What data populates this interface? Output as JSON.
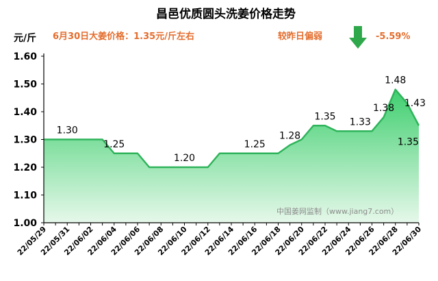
{
  "header": {
    "title": "昌邑优质圆头洗姜价格走势",
    "unit": "元/斤",
    "price_text": "6月30日大姜价格：1.35元/斤左右",
    "compare_label": "较昨日偏弱",
    "change_text": "-5.59%",
    "arrow_icon": "down-arrow-icon",
    "arrow_color": "#2ea84a"
  },
  "watermark": "中国姜网监制（www.jiang7.com）",
  "colors": {
    "line": "#2eb35a",
    "fill_top": "#3fcf6f",
    "fill_bottom": "#e6f8ea",
    "info": "#e36c2c"
  },
  "chart_data": {
    "type": "area",
    "title": "昌邑优质圆头洗姜价格走势",
    "ylabel": "元/斤",
    "xlabel": "",
    "ylim": [
      1.0,
      1.6
    ],
    "yticks": [
      "1.00",
      "1.10",
      "1.20",
      "1.30",
      "1.40",
      "1.50",
      "1.60"
    ],
    "grid": false,
    "x": [
      "22/05/29",
      "22/05/30",
      "22/05/31",
      "22/06/01",
      "22/06/02",
      "22/06/03",
      "22/06/04",
      "22/06/05",
      "22/06/06",
      "22/06/07",
      "22/06/08",
      "22/06/09",
      "22/06/10",
      "22/06/11",
      "22/06/12",
      "22/06/13",
      "22/06/14",
      "22/06/15",
      "22/06/16",
      "22/06/17",
      "22/06/18",
      "22/06/19",
      "22/06/20",
      "22/06/21",
      "22/06/22",
      "22/06/23",
      "22/06/24",
      "22/06/25",
      "22/06/26",
      "22/06/27",
      "22/06/28",
      "22/06/29",
      "22/06/30"
    ],
    "values": [
      1.3,
      1.3,
      1.3,
      1.3,
      1.3,
      1.3,
      1.25,
      1.25,
      1.25,
      1.2,
      1.2,
      1.2,
      1.2,
      1.2,
      1.2,
      1.25,
      1.25,
      1.25,
      1.25,
      1.25,
      1.25,
      1.28,
      1.3,
      1.35,
      1.35,
      1.33,
      1.33,
      1.33,
      1.33,
      1.38,
      1.48,
      1.43,
      1.35
    ],
    "xtick_labels": [
      "22/05/29",
      "22/05/31",
      "22/06/02",
      "22/06/04",
      "22/06/06",
      "22/06/08",
      "22/06/10",
      "22/06/12",
      "22/06/14",
      "22/06/16",
      "22/06/18",
      "22/06/20",
      "22/06/22",
      "22/06/24",
      "22/06/26",
      "22/06/28",
      "22/06/30"
    ],
    "data_labels": [
      {
        "x": "22/05/31",
        "text": "1.30"
      },
      {
        "x": "22/06/04",
        "text": "1.25"
      },
      {
        "x": "22/06/10",
        "text": "1.20"
      },
      {
        "x": "22/06/16",
        "text": "1.25"
      },
      {
        "x": "22/06/19",
        "text": "1.28"
      },
      {
        "x": "22/06/22",
        "text": "1.35"
      },
      {
        "x": "22/06/25",
        "text": "1.33"
      },
      {
        "x": "22/06/27",
        "text": "1.38"
      },
      {
        "x": "22/06/28",
        "text": "1.48"
      },
      {
        "x": "22/06/29",
        "text": "1.43"
      },
      {
        "x": "22/06/30",
        "text": "1.35"
      }
    ]
  }
}
